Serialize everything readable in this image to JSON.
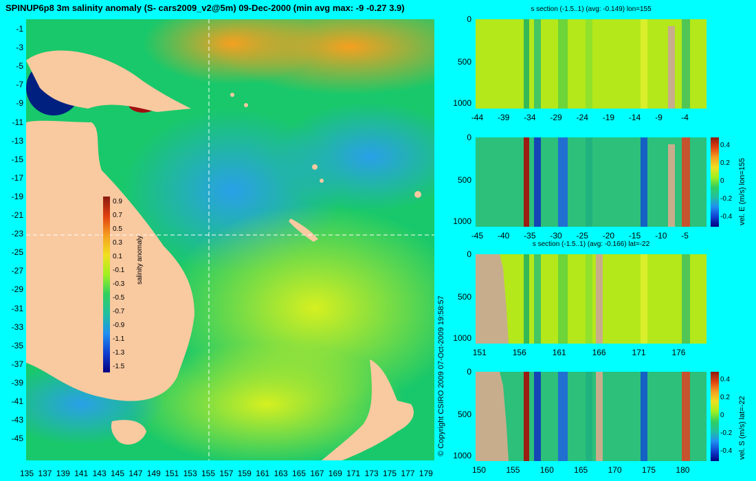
{
  "main_title": "SPINUP6p8 3m salinity anomaly (S- cars2009_v2@5m) 09-Dec-2000 (min avg max: -9 -0.27 3.9)",
  "copyright": "© Copyright CSIRO 2009   07-Oct-2009 19:58:57",
  "colors": {
    "background": "#00ffff",
    "land": "#f9c9a0",
    "section_land": "#c8ad8c",
    "ocean_mid": "#19c86a",
    "ocean_low": "#2aa0e8",
    "ocean_high": "#f6a820"
  },
  "map": {
    "lon_ticks": [
      "135",
      "137",
      "139",
      "141",
      "143",
      "145",
      "147",
      "149",
      "151",
      "153",
      "155",
      "157",
      "159",
      "161",
      "163",
      "165",
      "167",
      "169",
      "171",
      "173",
      "175",
      "177",
      "179"
    ],
    "lat_ticks": [
      "-1",
      "-3",
      "-5",
      "-7",
      "-9",
      "-11",
      "-13",
      "-15",
      "-17",
      "-19",
      "-21",
      "-23",
      "-25",
      "-27",
      "-29",
      "-31",
      "-33",
      "-35",
      "-37",
      "-39",
      "-41",
      "-43",
      "-45"
    ],
    "section_lon": "155",
    "section_lat": "-22"
  },
  "colorbar_main": {
    "label": "salinity anomaly",
    "ticks": [
      "0.9",
      "0.7",
      "0.5",
      "0.3",
      "0.1",
      "-0.1",
      "-0.3",
      "-0.5",
      "-0.7",
      "-0.9",
      "-1.1",
      "-1.3",
      "-1.5"
    ],
    "range": [
      -1.5,
      0.9
    ]
  },
  "panels": [
    {
      "title": "s section (-1.5..1) (avg: -0.149) lon=155",
      "y_ticks": [
        "0",
        "500",
        "1000"
      ],
      "x_ticks": [
        "-44",
        "-39",
        "-34",
        "-29",
        "-24",
        "-19",
        "-14",
        "-9",
        "-4"
      ]
    },
    {
      "title": "",
      "y_ticks": [
        "0",
        "500",
        "1000"
      ],
      "x_ticks": [
        "-45",
        "-40",
        "-35",
        "-30",
        "-25",
        "-20",
        "-15",
        "-10",
        "-5"
      ],
      "colorbar_label": "vel. E (m/s) lon=155",
      "colorbar_ticks": [
        "0.4",
        "0.2",
        "0",
        "-0.2",
        "-0.4"
      ]
    },
    {
      "title": "s section (-1.5..1) (avg: -0.166) lat=-22",
      "y_ticks": [
        "0",
        "500",
        "1000"
      ],
      "x_ticks": [
        "151",
        "156",
        "161",
        "166",
        "171",
        "176"
      ]
    },
    {
      "title": "",
      "y_ticks": [
        "0",
        "500",
        "1000"
      ],
      "x_ticks": [
        "150",
        "155",
        "160",
        "165",
        "170",
        "175",
        "180"
      ],
      "colorbar_label": "vel. S (m/s) lat=-22",
      "colorbar_ticks": [
        "0.4",
        "0.2",
        "0",
        "-0.2",
        "-0.4"
      ]
    }
  ]
}
